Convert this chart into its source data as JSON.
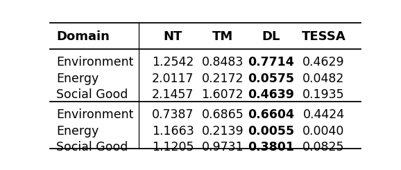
{
  "headers": [
    "Domain",
    "NT",
    "TM",
    "DL",
    "TESSA"
  ],
  "section1": [
    [
      "Environment",
      "1.2542",
      "0.8483",
      "0.7714",
      "0.4629"
    ],
    [
      "Energy",
      "2.0117",
      "0.2172",
      "0.0575",
      "0.0482"
    ],
    [
      "Social Good",
      "2.1457",
      "1.6072",
      "0.4639",
      "0.1935"
    ]
  ],
  "section2": [
    [
      "Environment",
      "0.7387",
      "0.6865",
      "0.6604",
      "0.4424"
    ],
    [
      "Energy",
      "1.1663",
      "0.2139",
      "0.0055",
      "0.0040"
    ],
    [
      "Social Good",
      "1.1205",
      "0.9731",
      "0.3801",
      "0.0825"
    ]
  ],
  "bold_col_idx": 4,
  "bg_color": "#ffffff",
  "text_color": "#000000",
  "header_fontsize": 13,
  "body_fontsize": 12.5
}
